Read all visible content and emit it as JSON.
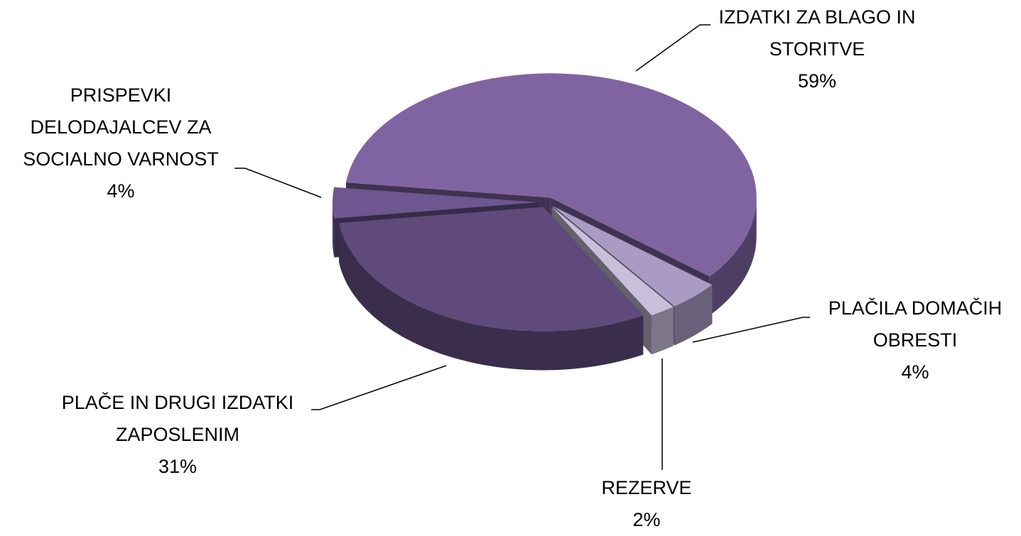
{
  "chart_data": {
    "type": "pie",
    "categories": [
      "IZDATKI ZA BLAGO IN STORITVE",
      "PLAČILA DOMAČIH OBRESTI",
      "REZERVE",
      "PLAČE IN DRUGI IZDATKI ZAPOSLENIM",
      "PRISPEVKI DELODAJALCEV ZA SOCIALNO VARNOST"
    ],
    "values": [
      59,
      4,
      2,
      31,
      4
    ],
    "value_labels": [
      "59%",
      "4%",
      "2%",
      "31%",
      "4%"
    ],
    "colors": [
      "#8064a2",
      "#a99bc3",
      "#c8bfdb",
      "#5f4a7b",
      "#6e5690"
    ]
  }
}
